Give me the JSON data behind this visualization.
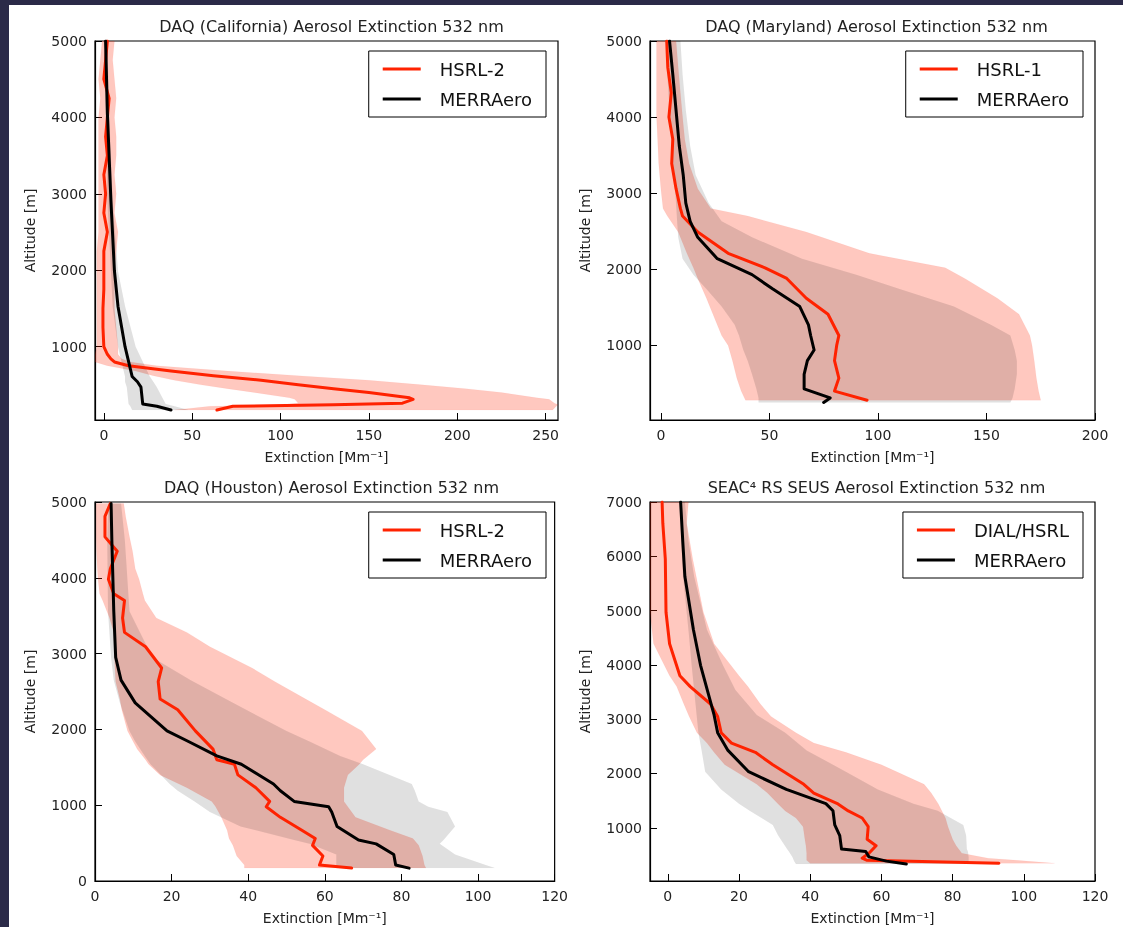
{
  "chart_data": [
    {
      "type": "line",
      "orientation": "horizontal",
      "title": "DAQ (California) Aerosol Extinction 532 nm",
      "xlabel": "Extinction [Mm⁻¹]",
      "ylabel": "Altitude [m]",
      "xlim": [
        -5,
        257
      ],
      "xticks": [
        0,
        50,
        100,
        150,
        200,
        250
      ],
      "ylim": [
        40,
        5000
      ],
      "yticks": [
        1000,
        2000,
        3000,
        4000,
        5000
      ],
      "legend": "top right",
      "series": [
        {
          "name": "HSRL-2",
          "color": "#ff2200",
          "x": [
            170,
            220,
            240,
            260,
            310,
            330,
            400,
            450,
            500,
            560,
            620,
            680,
            750,
            800,
            840,
            900,
            1000,
            1250,
            1500,
            1750,
            2000,
            2250,
            2500,
            2750,
            3000,
            3250,
            3500,
            3750,
            4000,
            4250,
            4500,
            4750,
            5000
          ],
          "values": [
            64,
            73,
            130,
            169,
            175,
            173,
            150,
            130,
            110,
            89,
            62,
            38,
            14,
            6,
            4,
            2,
            0,
            -0.5,
            -0.5,
            0,
            0,
            0,
            2,
            0,
            1,
            0,
            2,
            1,
            2,
            3,
            0,
            1,
            2
          ],
          "lower": [
            40,
            60,
            100,
            110,
            108,
            105,
            85,
            70,
            55,
            40,
            28,
            18,
            2,
            -5,
            -5,
            -5,
            -4,
            -4,
            -4,
            -4,
            -4,
            -4,
            -3,
            -3,
            -3,
            -3,
            -3,
            -3,
            -3,
            -2,
            -3,
            -2,
            -1
          ],
          "upper": [
            254,
            256,
            257,
            255,
            252,
            245,
            225,
            205,
            180,
            150,
            110,
            70,
            30,
            15,
            10,
            8,
            8,
            7,
            6,
            6,
            6,
            7,
            8,
            6,
            7,
            6,
            7,
            7,
            6,
            7,
            6,
            5,
            6
          ]
        },
        {
          "name": "MERRAero",
          "color": "#000000",
          "x": [
            170,
            220,
            250,
            470,
            540,
            610,
            1000,
            1530,
            1990,
            2910,
            4060,
            5000
          ],
          "values": [
            38,
            30,
            22,
            21,
            19,
            16,
            12,
            8,
            6,
            4,
            2,
            1
          ],
          "lower": [
            16,
            15,
            14,
            13,
            12,
            12,
            8,
            5,
            4,
            2,
            1,
            0
          ],
          "upper": [
            48,
            40,
            35,
            30,
            28,
            26,
            18,
            12,
            8,
            5,
            3,
            2
          ]
        }
      ]
    },
    {
      "type": "line",
      "orientation": "horizontal",
      "title": "DAQ (Maryland) Aerosol Extinction 532 nm",
      "xlabel": "Extinction [Mm⁻¹]",
      "ylabel": "Altitude [m]",
      "xlim": [
        -5,
        200
      ],
      "xticks": [
        0,
        50,
        100,
        150,
        200
      ],
      "ylim": [
        20,
        5000
      ],
      "yticks": [
        1000,
        2000,
        3000,
        4000,
        5000
      ],
      "legend": "top right",
      "series": [
        {
          "name": "HSRL-1",
          "color": "#ff2200",
          "x": [
            280,
            400,
            570,
            800,
            1000,
            1130,
            1410,
            1620,
            1880,
            2020,
            2210,
            2490,
            2700,
            2800,
            3060,
            3390,
            3710,
            4000,
            4320,
            4650,
            5000
          ],
          "values": [
            95,
            80,
            82,
            80,
            81,
            82,
            77,
            67,
            58,
            48,
            31,
            17,
            10,
            9,
            7,
            5,
            5.5,
            3.7,
            4.8,
            3.2,
            2.7
          ],
          "lower": [
            39,
            37,
            35,
            33,
            31,
            28,
            24,
            21,
            17,
            15,
            12,
            8,
            3,
            1,
            0,
            -1,
            -1.5,
            -2,
            -2,
            -2,
            -2
          ],
          "upper": [
            175,
            174,
            173,
            172,
            171,
            170,
            165,
            155,
            140,
            131,
            96,
            67,
            40,
            23,
            17,
            13,
            11,
            10,
            9,
            8,
            7
          ]
        },
        {
          "name": "MERRAero",
          "color": "#000000",
          "x": [
            250,
            310,
            430,
            620,
            800,
            940,
            1130,
            1270,
            1510,
            1740,
            1930,
            2140,
            2420,
            2630,
            2870,
            3240,
            3620,
            4090,
            4560,
            5000
          ],
          "values": [
            75,
            78,
            66,
            66,
            67.5,
            70.6,
            69,
            68,
            64,
            51.6,
            42,
            26,
            17,
            13.5,
            11.5,
            10.3,
            8.5,
            7,
            5.5,
            4
          ],
          "lower": [
            45,
            45,
            44,
            42,
            40,
            38,
            36,
            34,
            28,
            21,
            15,
            10,
            8,
            7.5,
            7,
            6,
            5,
            4,
            3,
            2.4
          ],
          "upper": [
            161,
            162,
            163,
            164,
            164,
            163,
            161,
            152,
            135,
            110,
            90,
            65,
            42,
            28,
            22,
            16,
            13.5,
            11.5,
            10,
            9
          ]
        }
      ]
    },
    {
      "type": "line",
      "orientation": "horizontal",
      "title": "DAQ (Houston) Aerosol Extinction 532 nm",
      "xlabel": "Extinction [Mm⁻¹]",
      "ylabel": "Altitude [m]",
      "xlim": [
        0,
        120
      ],
      "xticks": [
        0,
        20,
        40,
        60,
        80,
        100,
        120
      ],
      "ylim": [
        0,
        5000
      ],
      "yticks": [
        0,
        1000,
        2000,
        3000,
        4000,
        5000
      ],
      "legend": "top right",
      "series": [
        {
          "name": "HSRL-2",
          "color": "#ff2200",
          "x": [
            170,
            210,
            330,
            470,
            560,
            670,
            840,
            980,
            1050,
            1230,
            1400,
            1540,
            1600,
            1740,
            1980,
            2260,
            2400,
            2630,
            2810,
            3090,
            3280,
            3470,
            3700,
            3790,
            3980,
            4120,
            4350,
            4540,
            4810,
            4980
          ],
          "values": [
            67,
            58.6,
            59.5,
            56.8,
            57.5,
            54,
            48.4,
            44.7,
            45.6,
            42,
            37.3,
            36.4,
            31.8,
            30.8,
            26.2,
            21.6,
            17,
            16.5,
            17.4,
            13.2,
            7.7,
            7.2,
            7.7,
            4.9,
            3.5,
            4,
            5.8,
            2.6,
            2.6,
            4
          ],
          "lower": [
            39,
            39,
            37,
            36,
            35,
            34.5,
            33,
            31.5,
            30.5,
            24,
            17,
            14,
            13.2,
            11,
            8.5,
            7,
            6.5,
            5.4,
            5.2,
            5,
            4.9,
            3.8,
            2,
            1.2,
            0.8,
            0.6,
            0.4,
            0.3,
            0.3,
            0.3
          ],
          "upper": [
            86.4,
            86,
            85.5,
            84.5,
            83,
            77,
            68,
            66,
            65,
            65,
            66,
            69,
            70,
            73.4,
            69.7,
            60,
            55,
            47,
            41,
            30,
            24,
            16,
            13,
            12.5,
            11.5,
            10.5,
            9.8,
            9,
            8,
            7.5
          ]
        },
        {
          "name": "MERRAero",
          "color": "#000000",
          "x": [
            170,
            210,
            350,
            490,
            540,
            720,
            910,
            980,
            1050,
            1190,
            1280,
            1540,
            1650,
            1840,
            1980,
            2350,
            2650,
            2950,
            3560,
            4490,
            4980
          ],
          "values": [
            82,
            78.5,
            78,
            73.4,
            68.8,
            63.2,
            61.8,
            61,
            52,
            48.4,
            46.6,
            38.2,
            31.8,
            24.4,
            18.8,
            10.5,
            6.8,
            5.4,
            4.9,
            4.4,
            4.2
          ],
          "lower": [
            63,
            63,
            63,
            56,
            52,
            38,
            30,
            28,
            26,
            21.6,
            19.5,
            14.5,
            13,
            10.5,
            9,
            6.5,
            4.9,
            4.2,
            3.4,
            3.2,
            3.5
          ],
          "upper": [
            104.4,
            102,
            94,
            90,
            91,
            94,
            92,
            87,
            84.5,
            83.5,
            82.7,
            70,
            64,
            56,
            50,
            36,
            25,
            15,
            9,
            7.8,
            6.8
          ]
        }
      ]
    },
    {
      "type": "line",
      "orientation": "horizontal",
      "title": "SEAC⁴ RS SEUS Aerosol Extinction 532 nm",
      "xlabel": "Extinction [Mm⁻¹]",
      "ylabel": "Altitude [m]",
      "xlim": [
        -5,
        120
      ],
      "xticks": [
        0,
        20,
        40,
        60,
        80,
        100,
        120
      ],
      "ylim": [
        20,
        7000
      ],
      "yticks": [
        1000,
        2000,
        3000,
        4000,
        5000,
        6000,
        7000
      ],
      "legend": "top right",
      "series": [
        {
          "name": "DIAL/HSRL",
          "color": "#ff2200",
          "x": [
            346,
            400,
            440,
            530,
            670,
            790,
            1020,
            1180,
            1310,
            1440,
            1640,
            1800,
            2160,
            2390,
            2560,
            2750,
            3050,
            3280,
            3600,
            3800,
            4390,
            4970,
            5950,
            6610,
            7000
          ],
          "values": [
            93,
            56,
            54.6,
            56.5,
            58.5,
            56,
            56.3,
            54.6,
            50.7,
            47.8,
            41,
            38.2,
            29.5,
            24.6,
            17.9,
            15,
            14,
            12,
            6.3,
            3.4,
            0.5,
            -0.5,
            -0.7,
            -1.4,
            -1.6
          ],
          "lower": [
            40,
            39,
            39,
            39,
            38.8,
            38.5,
            38,
            36,
            33,
            31,
            28,
            25,
            16,
            13,
            11,
            8.2,
            6,
            4.5,
            2.5,
            0.5,
            -4,
            -5,
            -5,
            -5,
            -5
          ],
          "upper": [
            108.7,
            98,
            90,
            82.6,
            81,
            80,
            78.7,
            78,
            77,
            76,
            74,
            72,
            60,
            50,
            41,
            36,
            29,
            26,
            22.5,
            20,
            13,
            10,
            7,
            5.3,
            5.8
          ]
        },
        {
          "name": "MERRAero",
          "color": "#000000",
          "x": [
            333,
            386,
            464,
            562,
            608,
            856,
            1052,
            1314,
            1444,
            1706,
            2033,
            2425,
            2752,
            3078,
            3536,
            3993,
            4647,
            5627,
            6281,
            7000
          ],
          "values": [
            67,
            61.4,
            56.5,
            55.6,
            48.8,
            48.3,
            46.9,
            46.4,
            44.4,
            33.3,
            22.7,
            16.9,
            14,
            13,
            11.1,
            9.2,
            7.2,
            4.8,
            4.2,
            3.6
          ],
          "lower": [
            36,
            35.5,
            35,
            34,
            33.5,
            31,
            29.5,
            23,
            20,
            15,
            10.5,
            9.5,
            8.6,
            8.1,
            7.4,
            6.7,
            5.8,
            4.3,
            3.8,
            3.4
          ],
          "upper": [
            84,
            84.5,
            84.5,
            84.3,
            84,
            83.8,
            83,
            75.8,
            69,
            59,
            50,
            39,
            33,
            25,
            19,
            15.5,
            11,
            7.4,
            5.8,
            4.8
          ]
        }
      ]
    }
  ]
}
